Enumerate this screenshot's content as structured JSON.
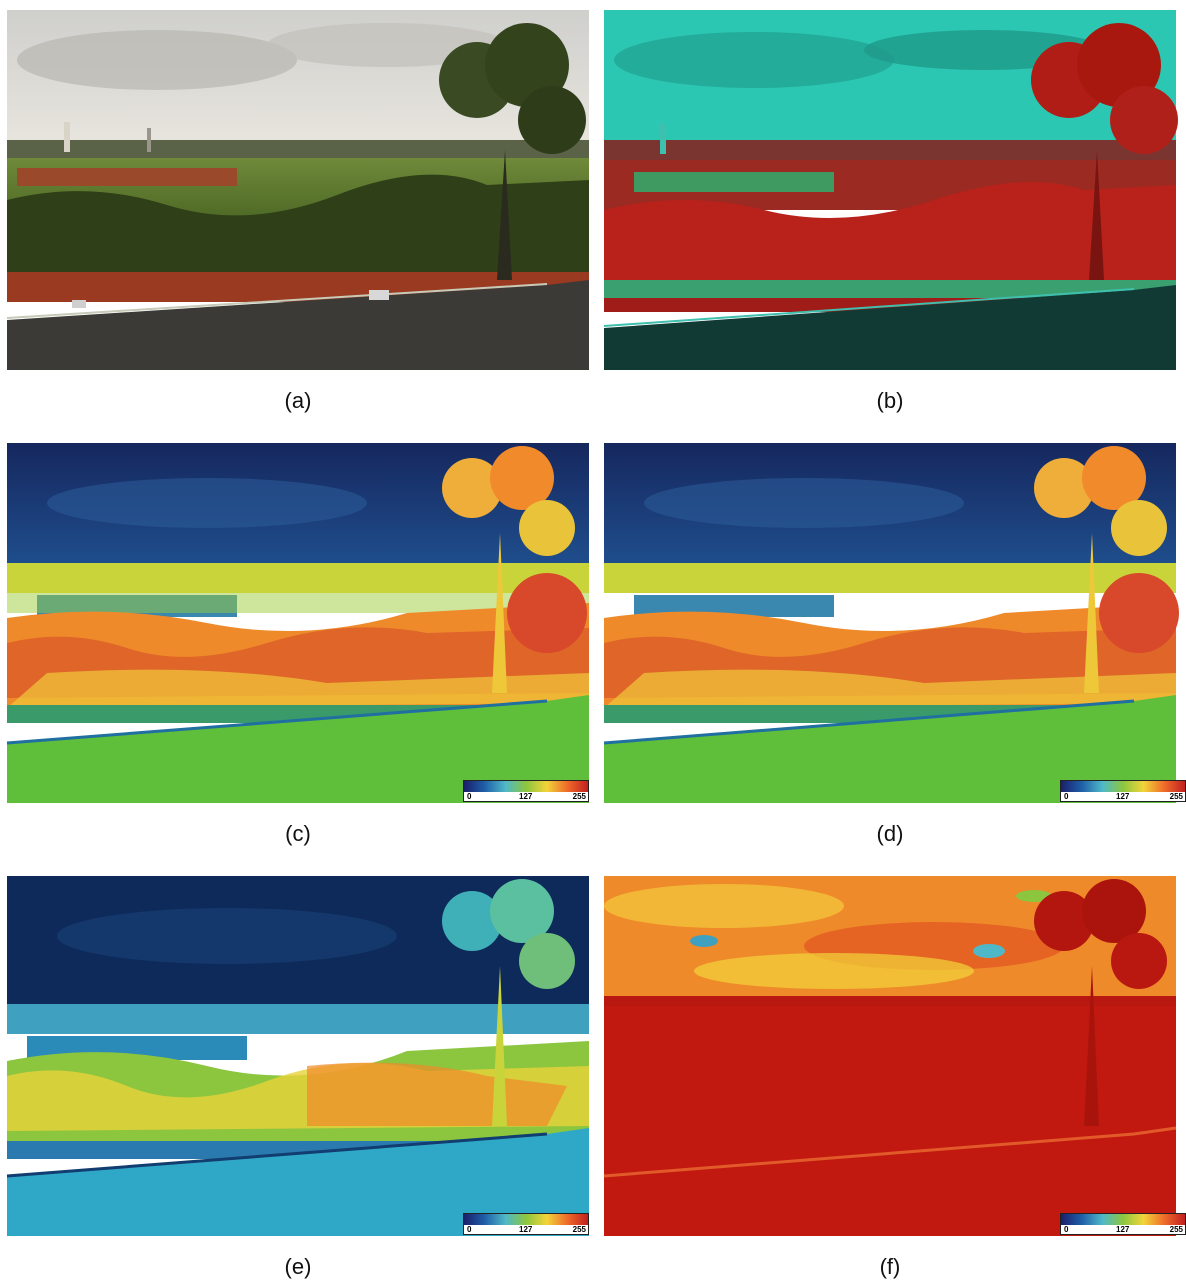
{
  "panels": [
    {
      "id": "a",
      "caption": "(a)",
      "variant": "rgb"
    },
    {
      "id": "b",
      "caption": "(b)",
      "variant": "false-color"
    },
    {
      "id": "c",
      "caption": "(c)",
      "variant": "jet-index",
      "colorbar": {
        "min": "0",
        "mid": "127",
        "max": "255"
      }
    },
    {
      "id": "d",
      "caption": "(d)",
      "variant": "jet-index",
      "colorbar": {
        "min": "0",
        "mid": "127",
        "max": "255"
      }
    },
    {
      "id": "e",
      "caption": "(e)",
      "variant": "jet-index-low",
      "colorbar": {
        "min": "0",
        "mid": "127",
        "max": "255"
      }
    },
    {
      "id": "f",
      "caption": "(f)",
      "variant": "jet-index-high",
      "colorbar": {
        "min": "0",
        "mid": "127",
        "max": "255"
      }
    }
  ],
  "colors": {
    "jet": [
      "#1b1f6b",
      "#1f5fa8",
      "#4fb8c8",
      "#8cc63f",
      "#f2d43a",
      "#ef6b2a",
      "#c21f1f"
    ]
  }
}
